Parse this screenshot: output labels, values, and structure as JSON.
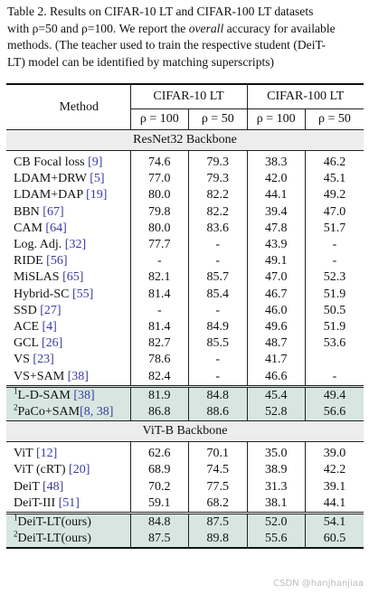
{
  "caption": {
    "line1": "Table 2.  Results on CIFAR-10 LT and CIFAR-100 LT datasets",
    "line2a": "with ρ=50 and ρ=100. We report the ",
    "line2_it": "overall",
    "line2b": " accuracy for available",
    "line3": "methods. (The teacher used to train the respective student (DeiT-",
    "line4": "LT) model can be identified by matching superscripts)"
  },
  "header": {
    "method": "Method",
    "cifar10": "CIFAR-10 LT",
    "cifar100": "CIFAR-100 LT",
    "rho100": "ρ = 100",
    "rho50": "ρ = 50"
  },
  "sections": {
    "resnet": "ResNet32 Backbone",
    "vitb": "ViT-B Backbone"
  },
  "resnet_rows": [
    {
      "name": "CB Focal loss ",
      "cite": "[9]",
      "v": [
        "74.6",
        "79.3",
        "38.3",
        "46.2"
      ]
    },
    {
      "name": "LDAM+DRW ",
      "cite": "[5]",
      "v": [
        "77.0",
        "79.3",
        "42.0",
        "45.1"
      ]
    },
    {
      "name": "LDAM+DAP ",
      "cite": "[19]",
      "v": [
        "80.0",
        "82.2",
        "44.1",
        "49.2"
      ]
    },
    {
      "name": "BBN ",
      "cite": "[67]",
      "v": [
        "79.8",
        "82.2",
        "39.4",
        "47.0"
      ]
    },
    {
      "name": "CAM ",
      "cite": "[64]",
      "v": [
        "80.0",
        "83.6",
        "47.8",
        "51.7"
      ]
    },
    {
      "name": "Log. Adj. ",
      "cite": "[32]",
      "v": [
        "77.7",
        "-",
        "43.9",
        "-"
      ]
    },
    {
      "name": "RIDE ",
      "cite": "[56]",
      "v": [
        "-",
        "-",
        "49.1",
        "-"
      ]
    },
    {
      "name": "MiSLAS ",
      "cite": "[65]",
      "v": [
        "82.1",
        "85.7",
        "47.0",
        "52.3"
      ]
    },
    {
      "name": "Hybrid-SC ",
      "cite": "[55]",
      "v": [
        "81.4",
        "85.4",
        "46.7",
        "51.9"
      ]
    },
    {
      "name": "SSD ",
      "cite": "[27]",
      "v": [
        "-",
        "-",
        "46.0",
        "50.5"
      ]
    },
    {
      "name": "ACE ",
      "cite": "[4]",
      "v": [
        "81.4",
        "84.9",
        "49.6",
        "51.9"
      ]
    },
    {
      "name": "GCL ",
      "cite": "[26]",
      "v": [
        "82.7",
        "85.5",
        "48.7",
        "53.6"
      ]
    },
    {
      "name": "VS ",
      "cite": "[23]",
      "v": [
        "78.6",
        "-",
        "41.7",
        ""
      ]
    },
    {
      "name": "VS+SAM ",
      "cite": "[38]",
      "v": [
        "82.4",
        "-",
        "46.6",
        "-"
      ]
    }
  ],
  "resnet_teachers": [
    {
      "sup": "1",
      "name": "L-D-SAM ",
      "cite": "[38]",
      "v": [
        "81.9",
        "84.8",
        "45.4",
        "49.4"
      ]
    },
    {
      "sup": "2",
      "name": "PaCo+SAM",
      "cite": "[8, 38]",
      "v": [
        "86.8",
        "88.6",
        "52.8",
        "56.6"
      ]
    }
  ],
  "vit_rows": [
    {
      "name": "ViT ",
      "cite": "[12]",
      "v": [
        "62.6",
        "70.1",
        "35.0",
        "39.0"
      ]
    },
    {
      "name": "ViT (cRT) ",
      "cite": "[20]",
      "v": [
        "68.9",
        "74.5",
        "38.9",
        "42.2"
      ]
    },
    {
      "name": "DeiT ",
      "cite": "[48]",
      "v": [
        "70.2",
        "77.5",
        "31.3",
        "39.1"
      ]
    },
    {
      "name": "DeiT-III ",
      "cite": "[51]",
      "v": [
        "59.1",
        "68.2",
        "38.1",
        "44.1"
      ]
    }
  ],
  "vit_ours": [
    {
      "sup": "1",
      "name": "DeiT-LT(ours)",
      "cite": "",
      "v": [
        "84.8",
        "87.5",
        "52.0",
        "54.1"
      ],
      "bold": false
    },
    {
      "sup": "2",
      "name": "DeiT-LT(ours)",
      "cite": "",
      "v": [
        "87.5",
        "89.8",
        "55.6",
        "60.5"
      ],
      "bold": true
    }
  ],
  "watermark": "CSDN @hanjhanjiaa"
}
